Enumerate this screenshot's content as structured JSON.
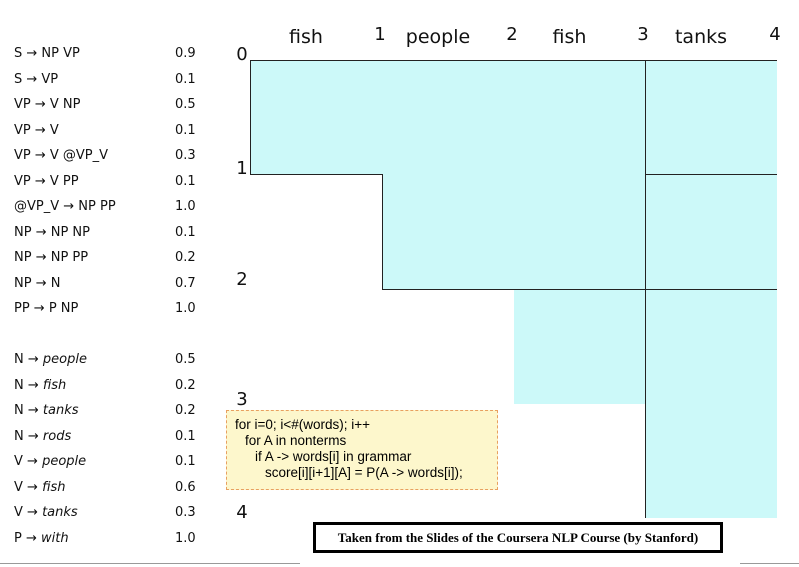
{
  "grammar": [
    {
      "rule": "S → NP VP",
      "prob": "0.9"
    },
    {
      "rule": "S → VP",
      "prob": "0.1"
    },
    {
      "rule": "VP → V NP",
      "prob": "0.5"
    },
    {
      "rule": "VP → V",
      "prob": "0.1"
    },
    {
      "rule": "VP → V @VP_V",
      "prob": "0.3"
    },
    {
      "rule": "VP → V PP",
      "prob": "0.1"
    },
    {
      "rule": "@VP_V → NP PP",
      "prob": "1.0"
    },
    {
      "rule": "NP → NP NP",
      "prob": "0.1"
    },
    {
      "rule": "NP → NP PP",
      "prob": "0.2"
    },
    {
      "rule": "NP → N",
      "prob": "0.7"
    },
    {
      "rule": "PP → P NP",
      "prob": "1.0"
    }
  ],
  "lexicon": [
    {
      "lhs": "N →",
      "word": "people",
      "prob": "0.5"
    },
    {
      "lhs": "N →",
      "word": "fish",
      "prob": "0.2"
    },
    {
      "lhs": "N →",
      "word": "tanks",
      "prob": "0.2"
    },
    {
      "lhs": "N →",
      "word": "rods",
      "prob": "0.1"
    },
    {
      "lhs": "V →",
      "word": "people",
      "prob": "0.1"
    },
    {
      "lhs": "V →",
      "word": "fish",
      "prob": "0.6"
    },
    {
      "lhs": "V →",
      "word": "tanks",
      "prob": "0.3"
    },
    {
      "lhs": "P →",
      "word": "with",
      "prob": "1.0"
    }
  ],
  "chart": {
    "words": [
      "fish",
      "people",
      "fish",
      "tanks"
    ],
    "indices": [
      "0",
      "1",
      "2",
      "3",
      "4"
    ]
  },
  "code": [
    "for i=0; i<#(words); i++",
    "for A in nonterms",
    "if A -> words[i] in grammar",
    "score[i][i+1][A] = P(A -> words[i]);"
  ],
  "caption": "Taken from the Slides of the Coursera NLP Course (by Stanford)"
}
